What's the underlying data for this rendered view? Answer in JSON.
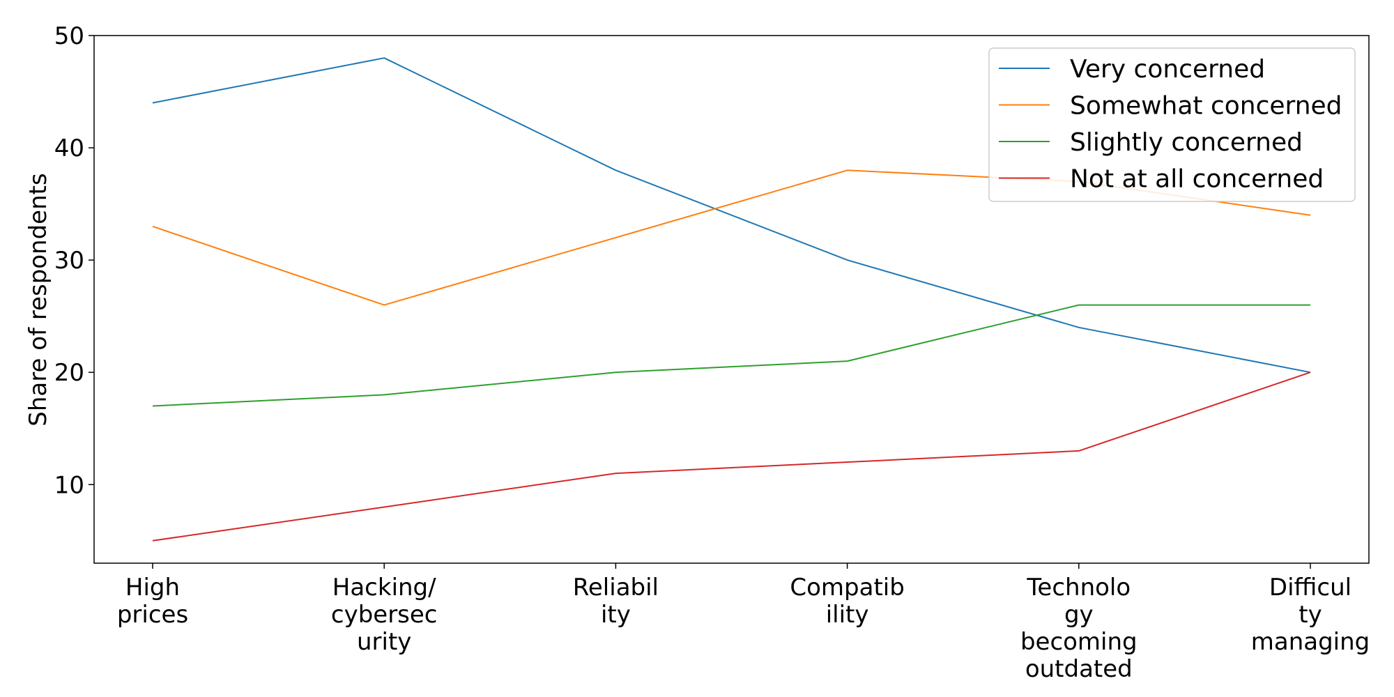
{
  "chart_data": {
    "type": "line",
    "title": "",
    "xlabel": "",
    "ylabel": "Share of respondents",
    "categories": [
      [
        "High",
        "prices"
      ],
      [
        "Hacking/",
        "cybersec",
        "urity"
      ],
      [
        "Reliabil",
        "ity"
      ],
      [
        "Compatib",
        "ility"
      ],
      [
        "Technolo",
        "gy",
        "becoming",
        "outdated"
      ],
      [
        "Difficul",
        "ty",
        "managing"
      ]
    ],
    "ylim": [
      3,
      50
    ],
    "yticks": [
      10,
      20,
      30,
      40,
      50
    ],
    "grid": false,
    "legend_position": "top-right",
    "series": [
      {
        "name": "Very concerned",
        "color": "#1f77b4",
        "values": [
          44,
          48,
          38,
          30,
          24,
          20
        ]
      },
      {
        "name": "Somewhat concerned",
        "color": "#ff7f0e",
        "values": [
          33,
          26,
          32,
          38,
          37,
          34
        ]
      },
      {
        "name": "Slightly concerned",
        "color": "#2ca02c",
        "values": [
          17,
          18,
          20,
          21,
          26,
          26
        ]
      },
      {
        "name": "Not at all concerned",
        "color": "#d62728",
        "values": [
          5,
          8,
          11,
          12,
          13,
          20
        ]
      }
    ]
  }
}
